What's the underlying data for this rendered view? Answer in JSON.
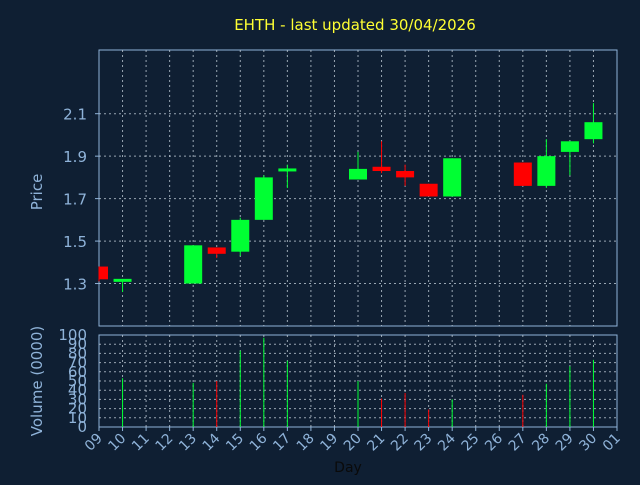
{
  "chart_data": {
    "type": "candlestick",
    "title": "EHTH - last updated 30/04/2026",
    "xlabel": "Day",
    "x_ticks": [
      "09",
      "10",
      "11",
      "12",
      "13",
      "14",
      "15",
      "16",
      "17",
      "18",
      "19",
      "20",
      "21",
      "22",
      "23",
      "24",
      "25",
      "26",
      "27",
      "28",
      "29",
      "30",
      "01"
    ],
    "price": {
      "ylabel": "Price",
      "ylim": [
        1.1,
        2.4
      ],
      "yticks": [
        "1.3",
        "1.5",
        "1.7",
        "1.9",
        "2.1"
      ],
      "ytick_values": [
        1.3,
        1.5,
        1.7,
        1.9,
        2.1
      ],
      "grid": true
    },
    "volume": {
      "ylabel": "Volume (0000)",
      "ylim": [
        0,
        100
      ],
      "yticks": [
        "0",
        "10",
        "20",
        "30",
        "40",
        "50",
        "60",
        "70",
        "80",
        "90",
        "100"
      ],
      "ytick_values": [
        0,
        10,
        20,
        30,
        40,
        50,
        60,
        70,
        80,
        90,
        100
      ],
      "grid": true
    },
    "colors": {
      "up": "#00ff33",
      "down": "#ff0000",
      "grid": "#c8d3de",
      "axis": "#8fb3d9",
      "title": "#ffff33"
    },
    "candles": [
      {
        "day": "09",
        "open": 1.38,
        "high": 1.38,
        "low": 1.31,
        "close": 1.32,
        "volume": 0
      },
      {
        "day": "10",
        "open": 1.31,
        "high": 1.32,
        "low": 1.26,
        "close": 1.32,
        "volume": 53
      },
      {
        "day": "13",
        "open": 1.3,
        "high": 1.48,
        "low": 1.3,
        "close": 1.48,
        "volume": 48
      },
      {
        "day": "14",
        "open": 1.47,
        "high": 1.47,
        "low": 1.42,
        "close": 1.44,
        "volume": 50
      },
      {
        "day": "15",
        "open": 1.45,
        "high": 1.61,
        "low": 1.43,
        "close": 1.6,
        "volume": 83
      },
      {
        "day": "16",
        "open": 1.6,
        "high": 1.81,
        "low": 1.6,
        "close": 1.8,
        "volume": 97
      },
      {
        "day": "17",
        "open": 1.83,
        "high": 1.86,
        "low": 1.75,
        "close": 1.84,
        "volume": 72
      },
      {
        "day": "20",
        "open": 1.79,
        "high": 1.92,
        "low": 1.79,
        "close": 1.84,
        "volume": 50
      },
      {
        "day": "21",
        "open": 1.85,
        "high": 1.97,
        "low": 1.82,
        "close": 1.83,
        "volume": 31
      },
      {
        "day": "22",
        "open": 1.83,
        "high": 1.86,
        "low": 1.76,
        "close": 1.8,
        "volume": 37
      },
      {
        "day": "23",
        "open": 1.77,
        "high": 1.77,
        "low": 1.71,
        "close": 1.71,
        "volume": 19
      },
      {
        "day": "24",
        "open": 1.71,
        "high": 1.89,
        "low": 1.71,
        "close": 1.89,
        "volume": 30
      },
      {
        "day": "27",
        "open": 1.87,
        "high": 1.87,
        "low": 1.76,
        "close": 1.76,
        "volume": 35
      },
      {
        "day": "28",
        "open": 1.76,
        "high": 1.98,
        "low": 1.75,
        "close": 1.9,
        "volume": 47
      },
      {
        "day": "29",
        "open": 1.92,
        "high": 1.97,
        "low": 1.81,
        "close": 1.97,
        "volume": 66
      },
      {
        "day": "30",
        "open": 1.98,
        "high": 2.15,
        "low": 1.96,
        "close": 2.06,
        "volume": 73
      }
    ]
  }
}
